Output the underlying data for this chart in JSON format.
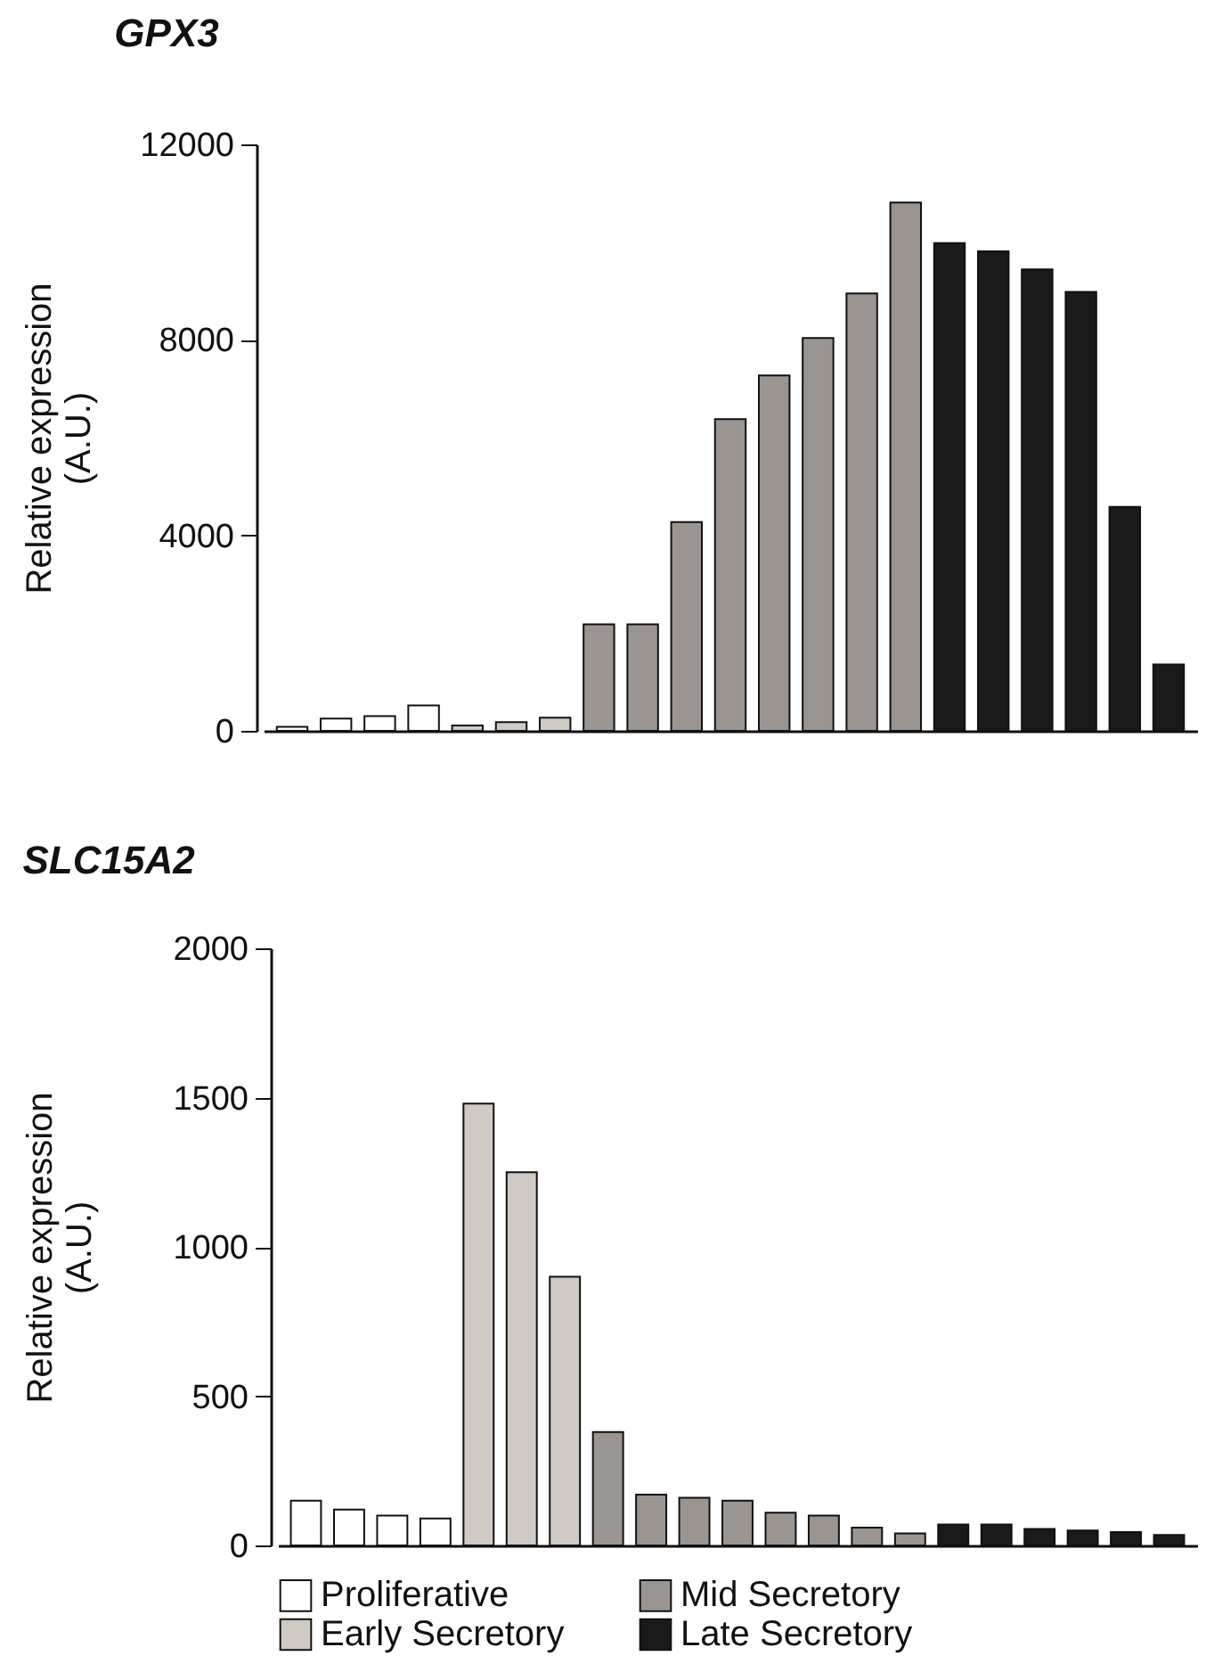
{
  "chart_data": [
    {
      "type": "bar",
      "title": "GPX3",
      "ylabel": "Relative expression\n(A.U.)",
      "categories": [
        null,
        null,
        null,
        null,
        null,
        null,
        null,
        null,
        null,
        null,
        null,
        null,
        null,
        null,
        null,
        null,
        null,
        null,
        null,
        null,
        null
      ],
      "ylim": [
        0,
        12000
      ],
      "yticks": [
        {
          "value": 0,
          "label": "0"
        },
        {
          "value": 4000,
          "label": "4000"
        },
        {
          "value": 8000,
          "label": "8000"
        },
        {
          "value": 12000,
          "label": "12000"
        }
      ],
      "legend": false,
      "tick_labels": "y",
      "series": [
        {
          "color": "#ffffff",
          "values": [
            80,
            250,
            300,
            520,
            null,
            null,
            null,
            null,
            null,
            null,
            null,
            null,
            null,
            null,
            null,
            null,
            null,
            null,
            null,
            null,
            null
          ]
        },
        {
          "color": "#9b9592",
          "values": [
            null,
            null,
            null,
            null,
            null,
            null,
            null,
            2180,
            2180,
            4270,
            6380,
            7270,
            8040,
            8950,
            10810,
            null,
            null,
            null,
            null,
            null,
            null
          ]
        },
        {
          "color": "#d0cac5",
          "values": [
            null,
            null,
            null,
            null,
            110,
            180,
            270,
            null,
            null,
            null,
            null,
            null,
            null,
            null,
            null,
            null,
            null,
            null,
            null,
            null,
            null
          ]
        },
        {
          "color": "#1a1a1a",
          "values": [
            null,
            null,
            null,
            null,
            null,
            null,
            null,
            null,
            null,
            null,
            null,
            null,
            null,
            null,
            null,
            9980,
            9810,
            9440,
            8980,
            4580,
            1360
          ]
        }
      ]
    },
    {
      "type": "bar",
      "title": "SLC15A2",
      "ylabel": "Relative expression\n(A.U.)",
      "categories": [
        null,
        null,
        null,
        null,
        null,
        null,
        null,
        null,
        null,
        null,
        null,
        null,
        null,
        null,
        null,
        null,
        null,
        null,
        null,
        null,
        null
      ],
      "ylim": [
        0,
        2000
      ],
      "yticks": [
        {
          "value": 0,
          "label": "0"
        },
        {
          "value": 500,
          "label": "500"
        },
        {
          "value": 1000,
          "label": "1000"
        },
        {
          "value": 1500,
          "label": "1500"
        },
        {
          "value": 2000,
          "label": "2000"
        }
      ],
      "legend": "bottom",
      "tick_labels": "y",
      "series": [
        {
          "name": "Proliferative",
          "color": "#ffffff",
          "values": [
            150,
            120,
            100,
            90,
            null,
            null,
            null,
            null,
            null,
            null,
            null,
            null,
            null,
            null,
            null,
            null,
            null,
            null,
            null,
            null,
            null
          ]
        },
        {
          "name": "Mid Secretory",
          "color": "#9b9592",
          "values": [
            null,
            null,
            null,
            null,
            null,
            null,
            null,
            380,
            170,
            160,
            150,
            110,
            100,
            60,
            40,
            null,
            null,
            null,
            null,
            null,
            null
          ]
        },
        {
          "name": "Early Secretory",
          "color": "#d0cac5",
          "values": [
            null,
            null,
            null,
            null,
            1480,
            1250,
            900,
            null,
            null,
            null,
            null,
            null,
            null,
            null,
            null,
            null,
            null,
            null,
            null,
            null,
            null
          ]
        },
        {
          "name": "Late Secretory",
          "color": "#1a1a1a",
          "values": [
            null,
            null,
            null,
            null,
            null,
            null,
            null,
            null,
            null,
            null,
            null,
            null,
            null,
            null,
            null,
            70,
            70,
            55,
            50,
            45,
            35
          ]
        }
      ]
    }
  ]
}
